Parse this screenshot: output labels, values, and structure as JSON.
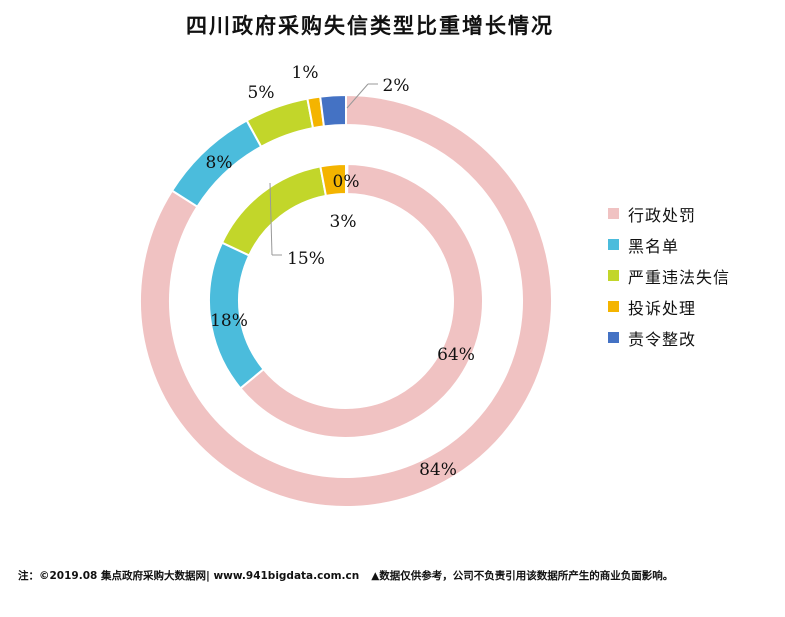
{
  "chart_data": {
    "type": "pie",
    "variant": "double-donut",
    "title": "四川政府采购失信类型比重增长情况",
    "categories": [
      "行政处罚",
      "黑名单",
      "严重违法失信",
      "投诉处理",
      "责令整改"
    ],
    "colors": [
      "#f0c2c2",
      "#4bbcdc",
      "#c2d62a",
      "#f4b400",
      "#4472c4"
    ],
    "series": [
      {
        "ring": "outer",
        "values": [
          84,
          8,
          5,
          1,
          2
        ],
        "labels": [
          "84%",
          "8%",
          "5%",
          "1%",
          "2%"
        ]
      },
      {
        "ring": "inner",
        "values": [
          64,
          18,
          15,
          3,
          0
        ],
        "labels": [
          "64%",
          "18%",
          "15%",
          "3%",
          "0%"
        ]
      }
    ],
    "legend_position": "right"
  },
  "footnote": {
    "source": "注：©2019.08 集点政府采购大数据网| www.941bigdata.com.cn",
    "disclaimer": "▲数据仅供参考，公司不负责引用该数据所产生的商业负面影响。"
  }
}
